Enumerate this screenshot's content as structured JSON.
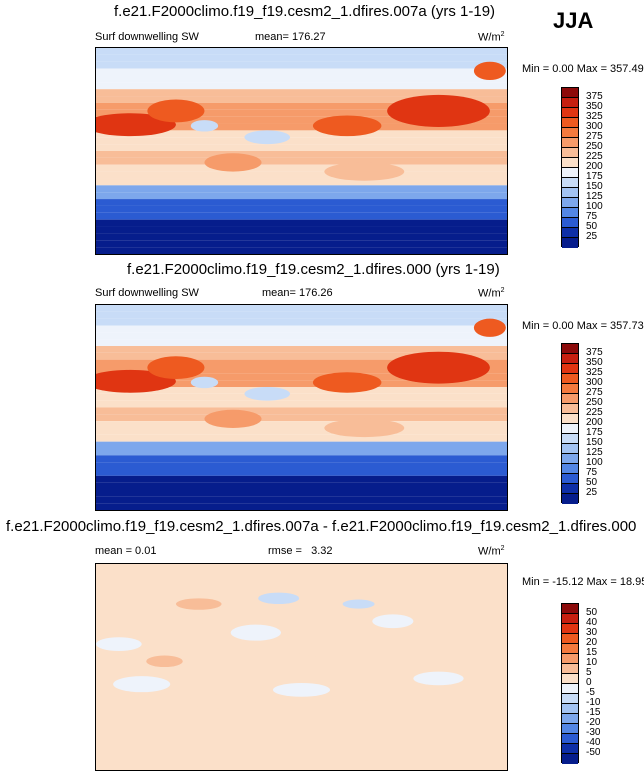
{
  "season": "JJA",
  "panels": [
    {
      "title": "f.e21.F2000climo.f19_f19.cesm2_1.dfires.007a (yrs 1-19)",
      "left_label": "Surf downwelling SW",
      "mean_label": "mean=",
      "mean_value": "176.27",
      "units": "W/m",
      "units_sup": "2",
      "minmax": "Min =   0.00 Max = 357.49"
    },
    {
      "title": "f.e21.F2000climo.f19_f19.cesm2_1.dfires.000 (yrs 1-19)",
      "left_label": "Surf downwelling SW",
      "mean_label": "mean=",
      "mean_value": "176.26",
      "units": "W/m",
      "units_sup": "2",
      "minmax": "Min =   0.00 Max = 357.73"
    },
    {
      "title": "f.e21.F2000climo.f19_f19.cesm2_1.dfires.007a - f.e21.F2000climo.f19_f19.cesm2_1.dfires.000",
      "left_label": "mean =    0.01",
      "mean_label": "rmse =",
      "mean_value": "3.32",
      "units": "W/m",
      "units_sup": "2",
      "minmax": "Min = -15.12 Max =  18.95"
    }
  ],
  "chart_data": [
    {
      "type": "heatmap",
      "title": "f.e21.F2000climo.f19_f19.cesm2_1.dfires.007a (yrs 1-19)",
      "variable": "Surf downwelling SW",
      "units": "W/m2",
      "mean": 176.27,
      "min": 0.0,
      "max": 357.49,
      "colorbar_levels": [
        375,
        350,
        325,
        300,
        275,
        250,
        225,
        200,
        175,
        150,
        125,
        100,
        75,
        50,
        25
      ],
      "colorbar_colors": [
        "#8c0a0a",
        "#c51f10",
        "#e03512",
        "#ee5a20",
        "#f47a3e",
        "#f69b6a",
        "#f8bd98",
        "#fbe0c9",
        "#eef3fb",
        "#c8dcf7",
        "#a3c3f2",
        "#7da7ec",
        "#5386e4",
        "#2b5bd2",
        "#0e2fa7",
        "#061d8c"
      ]
    },
    {
      "type": "heatmap",
      "title": "f.e21.F2000climo.f19_f19.cesm2_1.dfires.000 (yrs 1-19)",
      "variable": "Surf downwelling SW",
      "units": "W/m2",
      "mean": 176.26,
      "min": 0.0,
      "max": 357.73,
      "colorbar_levels": [
        375,
        350,
        325,
        300,
        275,
        250,
        225,
        200,
        175,
        150,
        125,
        100,
        75,
        50,
        25
      ],
      "colorbar_colors": [
        "#8c0a0a",
        "#c51f10",
        "#e03512",
        "#ee5a20",
        "#f47a3e",
        "#f69b6a",
        "#f8bd98",
        "#fbe0c9",
        "#eef3fb",
        "#c8dcf7",
        "#a3c3f2",
        "#7da7ec",
        "#5386e4",
        "#2b5bd2",
        "#0e2fa7",
        "#061d8c"
      ]
    },
    {
      "type": "heatmap",
      "title": "f.e21.F2000climo.f19_f19.cesm2_1.dfires.007a - f.e21.F2000climo.f19_f19.cesm2_1.dfires.000",
      "units": "W/m2",
      "mean": 0.01,
      "rmse": 3.32,
      "min": -15.12,
      "max": 18.95,
      "colorbar_levels": [
        50,
        40,
        30,
        20,
        15,
        10,
        5,
        0,
        -5,
        -10,
        -15,
        -20,
        -30,
        -40,
        -50
      ],
      "colorbar_colors": [
        "#8c0a0a",
        "#c51f10",
        "#e03512",
        "#ee5a20",
        "#f47a3e",
        "#f69b6a",
        "#f8bd98",
        "#fbe0c9",
        "#eef3fb",
        "#c8dcf7",
        "#a3c3f2",
        "#7da7ec",
        "#5386e4",
        "#2b5bd2",
        "#0e2fa7",
        "#061d8c"
      ]
    }
  ]
}
